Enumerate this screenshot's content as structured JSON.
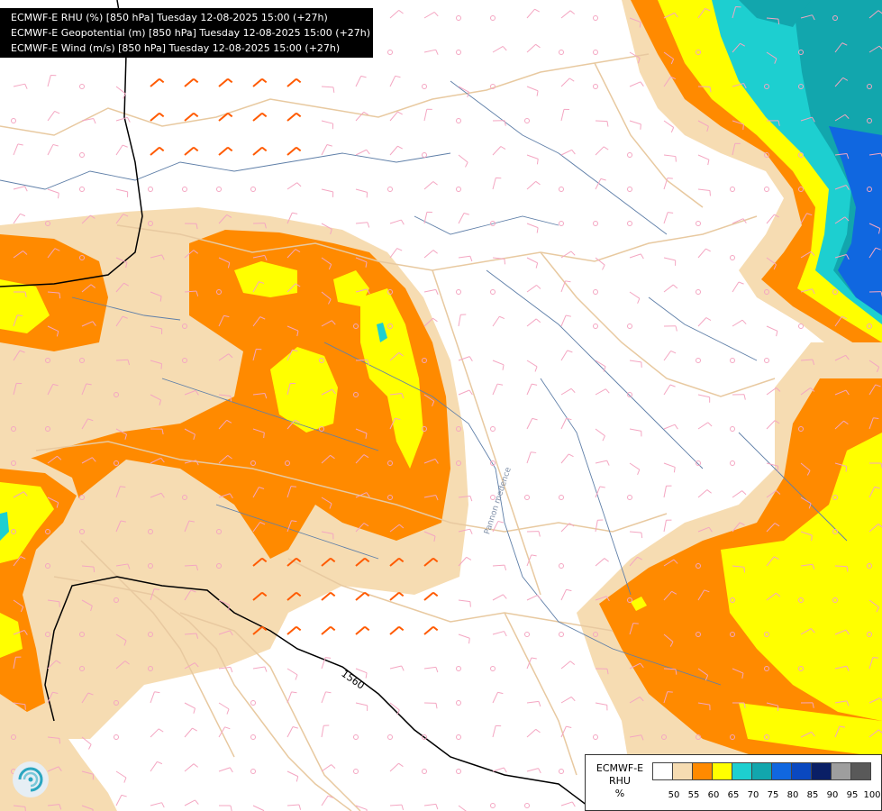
{
  "header": {
    "lines": [
      "ECMWF-E RHU (%) [850 hPa] Tuesday 12-08-2025 15:00 (+27h)",
      "ECMWF-E Geopotential (m) [850 hPa] Tuesday 12-08-2025 15:00 (+27h)",
      "ECMWF-E Wind (m/s) [850 hPa] Tuesday 12-08-2025 15:00 (+27h)"
    ]
  },
  "map": {
    "contour_label": "1560",
    "place_label": "Pannon medence",
    "colors": {
      "r50": "#f6dcb2",
      "r55": "#ff8a00",
      "r60": "#ffff00",
      "r70": "#1dcfd0",
      "r75": "#12a6ad",
      "r80": "#1067e0",
      "border": "#e8c9a0",
      "river": "#5f7fa8",
      "barb": "#f4a6c2",
      "strongbarb": "#ff5a00"
    }
  },
  "legend": {
    "title_line1": "ECMWF-E",
    "title_line2": "RHU",
    "unit": "%",
    "colors": [
      "#ffffff",
      "#f6dcb2",
      "#ff8a00",
      "#ffff00",
      "#1dcfd0",
      "#12a6ad",
      "#1067e0",
      "#0a48c0",
      "#0a1f66",
      "#9e9e9e",
      "#595959"
    ],
    "labels": [
      "50",
      "55",
      "60",
      "65",
      "70",
      "75",
      "80",
      "85",
      "90",
      "95",
      "100"
    ]
  }
}
